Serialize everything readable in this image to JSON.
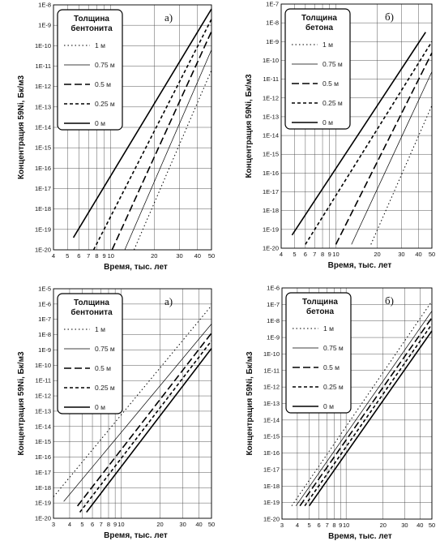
{
  "chart_data": [
    {
      "type": "line",
      "panel_label": "а)",
      "xlabel": "Время, тыс. лет",
      "ylabel": "Концентрация 59Ni, Бк/м3",
      "xscale": "log",
      "yscale": "log",
      "xlim": [
        4,
        50
      ],
      "ylim_exp": [
        -20,
        -8
      ],
      "xticks": [
        4,
        5,
        6,
        7,
        8,
        9,
        10,
        20,
        30,
        40,
        50
      ],
      "legend": {
        "title_lines": [
          "Толщина",
          "бентонита"
        ],
        "placement": "top-left"
      },
      "series": [
        {
          "name": "1 м",
          "style": "dotted",
          "x": [
            14.5,
            50
          ],
          "logy": [
            -20,
            -11.2
          ]
        },
        {
          "name": "0.75 м",
          "style": "thin",
          "x": [
            12.5,
            50
          ],
          "logy": [
            -20,
            -10.2
          ]
        },
        {
          "name": "0.5 м",
          "style": "long-dash",
          "x": [
            10.2,
            50
          ],
          "logy": [
            -20,
            -9.3
          ]
        },
        {
          "name": "0.25 м",
          "style": "short-dash",
          "x": [
            7.6,
            50
          ],
          "logy": [
            -20,
            -8.7
          ]
        },
        {
          "name": "0 м",
          "style": "solid",
          "x": [
            5.5,
            50
          ],
          "logy": [
            -19.4,
            -8.2
          ]
        }
      ]
    },
    {
      "type": "line",
      "panel_label": "б)",
      "xlabel": "Время, тыс. лет",
      "ylabel": "Концентрация 59Ni, Бк/м3",
      "xscale": "log",
      "yscale": "log",
      "xlim": [
        4,
        50
      ],
      "ylim_exp": [
        -20,
        -7
      ],
      "xticks": [
        4,
        5,
        6,
        7,
        8,
        9,
        10,
        20,
        30,
        40,
        50
      ],
      "legend": {
        "title_lines": [
          "Толщина",
          "бетона"
        ],
        "placement": "top-left"
      },
      "series": [
        {
          "name": "1 м",
          "style": "dotted",
          "x": [
            18,
            50
          ],
          "logy": [
            -19.8,
            -12.4
          ]
        },
        {
          "name": "0.75 м",
          "style": "thin",
          "x": [
            13,
            50
          ],
          "logy": [
            -19.8,
            -10.6
          ]
        },
        {
          "name": "0.5 м",
          "style": "long-dash",
          "x": [
            10,
            50
          ],
          "logy": [
            -19.8,
            -9.6
          ]
        },
        {
          "name": "0.25 м",
          "style": "short-dash",
          "x": [
            6,
            50
          ],
          "logy": [
            -19.8,
            -9
          ]
        },
        {
          "name": "0 м",
          "style": "solid",
          "x": [
            4.8,
            45
          ],
          "logy": [
            -19.3,
            -8.5
          ]
        }
      ]
    },
    {
      "type": "line",
      "panel_label": "а)",
      "xlabel": "Время, тыс. лет",
      "ylabel": "Концентрация 59Ni, Бк/м3",
      "xscale": "log",
      "yscale": "log",
      "xlim": [
        3,
        50
      ],
      "ylim_exp": [
        -20,
        -5
      ],
      "xticks": [
        3,
        4,
        5,
        6,
        7,
        8,
        9,
        10,
        20,
        30,
        40,
        50
      ],
      "legend": {
        "title_lines": [
          "Толщина",
          "бентонита"
        ],
        "placement": "top-left"
      },
      "series": [
        {
          "name": "1 м",
          "style": "dotted",
          "x": [
            3,
            50
          ],
          "logy": [
            -18.6,
            -6.1
          ]
        },
        {
          "name": "0.75 м",
          "style": "thin",
          "x": [
            3.6,
            50
          ],
          "logy": [
            -18.9,
            -7.3
          ]
        },
        {
          "name": "0.5 м",
          "style": "long-dash",
          "x": [
            4.6,
            50
          ],
          "logy": [
            -19.2,
            -7.9
          ]
        },
        {
          "name": "0.25 м",
          "style": "short-dash",
          "x": [
            4.8,
            50
          ],
          "logy": [
            -19.6,
            -8.4
          ]
        },
        {
          "name": "0 м",
          "style": "solid",
          "x": [
            5.4,
            50
          ],
          "logy": [
            -19.6,
            -8.9
          ]
        }
      ]
    },
    {
      "type": "line",
      "panel_label": "б)",
      "xlabel": "Время, тыс. лет",
      "ylabel": "Концентрация 59Ni, Бк/м3",
      "xscale": "log",
      "yscale": "log",
      "xlim": [
        3,
        50
      ],
      "ylim_exp": [
        -20,
        -6
      ],
      "xticks": [
        3,
        4,
        5,
        6,
        7,
        8,
        9,
        10,
        20,
        30,
        40,
        50
      ],
      "legend": {
        "title_lines": [
          "Толщина",
          "бетона"
        ],
        "placement": "top-left"
      },
      "series": [
        {
          "name": "1 м",
          "style": "dotted",
          "x": [
            3.6,
            50
          ],
          "logy": [
            -19.2,
            -6.8
          ]
        },
        {
          "name": "0.75 м",
          "style": "thin",
          "x": [
            3.9,
            50
          ],
          "logy": [
            -19.2,
            -7.4
          ]
        },
        {
          "name": "0.5 м",
          "style": "long-dash",
          "x": [
            4.2,
            50
          ],
          "logy": [
            -19.2,
            -7.8
          ]
        },
        {
          "name": "0.25 м",
          "style": "short-dash",
          "x": [
            4.6,
            50
          ],
          "logy": [
            -19.2,
            -8.2
          ]
        },
        {
          "name": "0 м",
          "style": "solid",
          "x": [
            5,
            50
          ],
          "logy": [
            -19.2,
            -8.6
          ]
        }
      ]
    }
  ],
  "styles": {
    "line_color": "#000000",
    "grid_color": "#444444",
    "legend_box_stroke": "#000000"
  }
}
